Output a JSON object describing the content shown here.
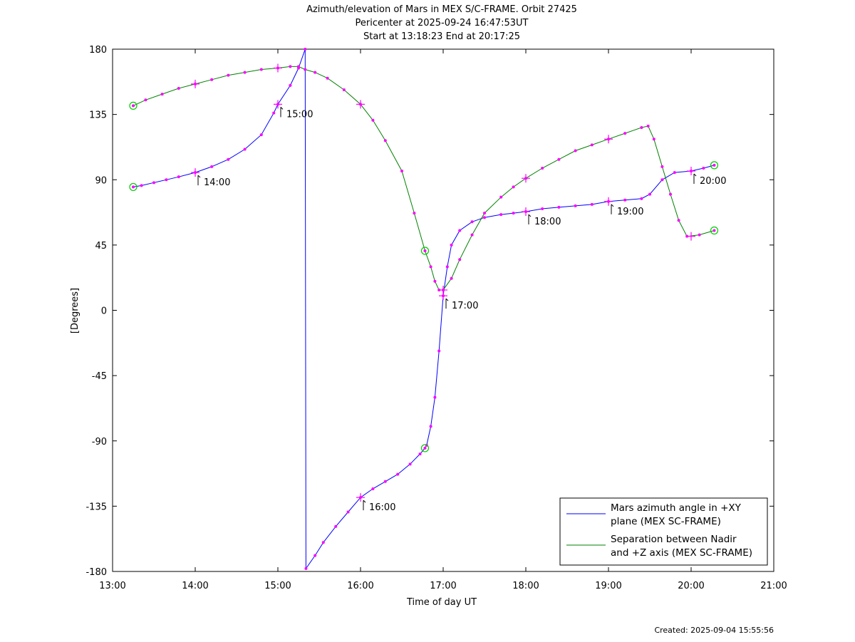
{
  "chart_data": {
    "type": "line",
    "title_lines": [
      "Azimuth/elevation of Mars in MEX S/C-FRAME.  Orbit 27425",
      "Pericenter at 2025-09-24 16:47:53UT",
      "Start at 13:18:23 End at 20:17:25"
    ],
    "xlabel": "Time of day UT",
    "ylabel": "[Degrees]",
    "xlim": [
      13.0,
      21.0
    ],
    "ylim": [
      -180,
      180
    ],
    "x_ticks": [
      13,
      14,
      15,
      16,
      17,
      18,
      19,
      20,
      21
    ],
    "x_tick_labels": [
      "13:00",
      "14:00",
      "15:00",
      "16:00",
      "17:00",
      "18:00",
      "19:00",
      "20:00",
      "21:00"
    ],
    "y_ticks": [
      180,
      135,
      90,
      45,
      0,
      -45,
      -90,
      -135,
      -180
    ],
    "y_tick_labels": [
      "180",
      "135",
      "90",
      "45",
      "0",
      "-45",
      "-90",
      "-135",
      "-180"
    ],
    "grid": false,
    "legend_position": "bottom-right",
    "series": [
      {
        "name": "Mars azimuth angle in +XY plane (MEX SC-FRAME)",
        "legend_lines": [
          "Mars azimuth angle in +XY",
          "plane (MEX SC-FRAME)"
        ],
        "color": "#0000ff",
        "x": [
          13.25,
          13.35,
          13.5,
          13.65,
          13.8,
          14.0,
          14.2,
          14.4,
          14.6,
          14.8,
          14.95,
          15.0,
          15.15,
          15.25,
          15.33,
          15.34,
          15.45,
          15.55,
          15.7,
          15.85,
          16.0,
          16.15,
          16.3,
          16.45,
          16.6,
          16.72,
          16.78,
          16.8,
          16.85,
          16.9,
          16.95,
          17.0,
          17.05,
          17.1,
          17.2,
          17.35,
          17.5,
          17.7,
          17.85,
          18.0,
          18.2,
          18.4,
          18.6,
          18.8,
          19.0,
          19.2,
          19.4,
          19.5,
          19.65,
          19.8,
          20.0,
          20.15,
          20.28
        ],
        "y": [
          85,
          86,
          88,
          90,
          92,
          95,
          99,
          104,
          111,
          121,
          136,
          142,
          155,
          167,
          180,
          -178,
          -169,
          -160,
          -149,
          -139,
          -129,
          -123,
          -118,
          -113,
          -106,
          -99,
          -95,
          -93,
          -80,
          -60,
          -28,
          10,
          30,
          45,
          55,
          61,
          64,
          66,
          67,
          68,
          70,
          71,
          72,
          73,
          75,
          76,
          77,
          80,
          90,
          95,
          96,
          98,
          100
        ]
      },
      {
        "name": "Separation between Nadir and +Z axis (MEX SC-FRAME)",
        "legend_lines": [
          "Separation between Nadir",
          "and +Z axis (MEX SC-FRAME)"
        ],
        "color": "#008000",
        "x": [
          13.25,
          13.4,
          13.6,
          13.8,
          14.0,
          14.2,
          14.4,
          14.6,
          14.8,
          15.0,
          15.15,
          15.25,
          15.33,
          15.45,
          15.6,
          15.8,
          16.0,
          16.15,
          16.3,
          16.5,
          16.65,
          16.78,
          16.85,
          16.9,
          16.95,
          17.0,
          17.1,
          17.2,
          17.35,
          17.5,
          17.7,
          17.85,
          18.0,
          18.2,
          18.4,
          18.6,
          18.8,
          19.0,
          19.2,
          19.4,
          19.48,
          19.55,
          19.65,
          19.75,
          19.85,
          19.95,
          20.1,
          20.28
        ],
        "y": [
          141,
          145,
          149,
          153,
          156,
          159,
          162,
          164,
          166,
          167,
          168,
          168,
          166,
          164,
          160,
          152,
          142,
          131,
          117,
          96,
          67,
          41,
          30,
          20,
          14,
          14,
          22,
          35,
          52,
          67,
          78,
          85,
          91,
          98,
          104,
          110,
          114,
          118,
          122,
          126,
          127,
          118,
          99,
          80,
          62,
          51,
          52,
          55
        ]
      }
    ],
    "hour_labels": [
      {
        "series": 0,
        "x": 14.0,
        "y": 95,
        "text": "14:00"
      },
      {
        "series": 0,
        "x": 15.0,
        "y": 142,
        "text": "15:00"
      },
      {
        "series": 0,
        "x": 16.0,
        "y": -129,
        "text": "16:00"
      },
      {
        "series": 0,
        "x": 17.0,
        "y": 10,
        "text": "17:00"
      },
      {
        "series": 0,
        "x": 18.0,
        "y": 68,
        "text": "18:00"
      },
      {
        "series": 0,
        "x": 19.0,
        "y": 75,
        "text": "19:00"
      },
      {
        "series": 0,
        "x": 20.0,
        "y": 96,
        "text": "20:00"
      }
    ],
    "plus_markers": [
      {
        "x": 14.0,
        "y": 95
      },
      {
        "x": 15.0,
        "y": 142
      },
      {
        "x": 16.0,
        "y": -129
      },
      {
        "x": 17.0,
        "y": 10
      },
      {
        "x": 18.0,
        "y": 68
      },
      {
        "x": 19.0,
        "y": 75
      },
      {
        "x": 20.0,
        "y": 96
      },
      {
        "x": 14.0,
        "y": 156
      },
      {
        "x": 15.0,
        "y": 167
      },
      {
        "x": 16.0,
        "y": 142
      },
      {
        "x": 17.0,
        "y": 14
      },
      {
        "x": 18.0,
        "y": 91
      },
      {
        "x": 19.0,
        "y": 118
      },
      {
        "x": 20.0,
        "y": 51
      }
    ],
    "circle_markers": [
      {
        "x": 13.25,
        "y": 85
      },
      {
        "x": 13.25,
        "y": 141
      },
      {
        "x": 16.78,
        "y": -95
      },
      {
        "x": 16.78,
        "y": 41
      },
      {
        "x": 20.28,
        "y": 100
      },
      {
        "x": 20.28,
        "y": 55
      }
    ],
    "footer": "Created: 2025-09-04 15:55:56"
  }
}
